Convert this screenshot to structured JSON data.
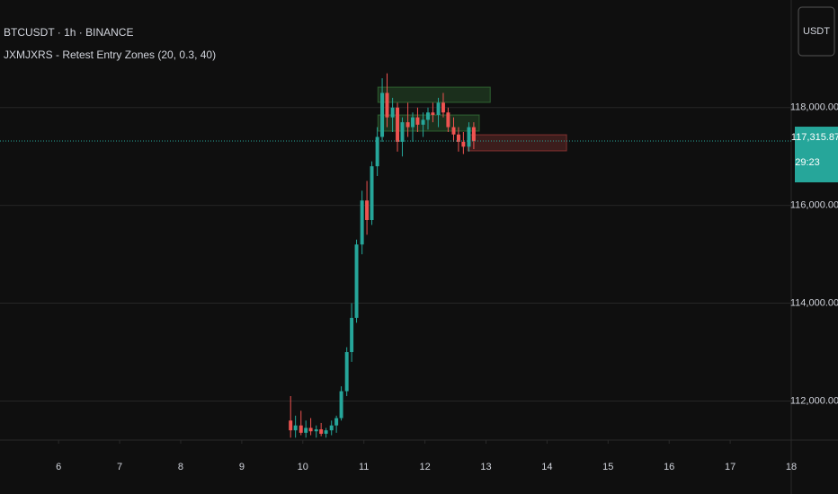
{
  "chart_data": {
    "type": "candlestick",
    "symbol": "BTCUSDT · 1h · BINANCE",
    "indicator": "JXMJXRS - Retest Entry Zones (20, 0.3, 40)",
    "currency": "USDT",
    "up_color": "#26a69a",
    "down_color": "#ef5350",
    "x": [
      9.8,
      9.88,
      9.97,
      10.05,
      10.13,
      10.22,
      10.3,
      10.38,
      10.47,
      10.55,
      10.63,
      10.72,
      10.8,
      10.88,
      10.97,
      11.05,
      11.13,
      11.22,
      11.3,
      11.38,
      11.47,
      11.55,
      11.63,
      11.72,
      11.8,
      11.88,
      11.97,
      12.05,
      12.13,
      12.22,
      12.3,
      12.38,
      12.47,
      12.55,
      12.63,
      12.72,
      12.8
    ],
    "open": [
      111600,
      111400,
      111500,
      111350,
      111450,
      111380,
      111420,
      111330,
      111400,
      111500,
      111650,
      112200,
      113000,
      113700,
      115200,
      116100,
      115700,
      116800,
      117400,
      118300,
      117800,
      118000,
      117300,
      117700,
      117600,
      117800,
      117650,
      117750,
      117900,
      117850,
      118100,
      117900,
      117600,
      117450,
      117300,
      117200,
      117600
    ],
    "high": [
      112100,
      111700,
      111800,
      111600,
      111650,
      111500,
      111550,
      111450,
      111600,
      111700,
      112300,
      113100,
      114000,
      115300,
      116300,
      116500,
      116900,
      117600,
      118600,
      118700,
      118200,
      118100,
      117800,
      118100,
      117900,
      118000,
      117900,
      118000,
      118100,
      118200,
      118300,
      118000,
      117800,
      117600,
      117500,
      117700,
      117700
    ],
    "low": [
      111250,
      111250,
      111300,
      111250,
      111300,
      111250,
      111280,
      111250,
      111300,
      111350,
      111600,
      112100,
      112800,
      113600,
      115000,
      115400,
      115600,
      116600,
      117300,
      117600,
      117500,
      117100,
      117000,
      117400,
      117300,
      117500,
      117400,
      117550,
      117700,
      117600,
      117800,
      117500,
      117300,
      117100,
      117050,
      117100,
      117150
    ],
    "close": [
      111400,
      111500,
      111350,
      111450,
      111380,
      111420,
      111330,
      111400,
      111500,
      111650,
      112200,
      113000,
      113700,
      115200,
      116100,
      115700,
      116800,
      117400,
      118300,
      117800,
      118000,
      117300,
      117700,
      117600,
      117800,
      117650,
      117750,
      117900,
      117850,
      118100,
      117900,
      117600,
      117450,
      117300,
      117200,
      117600,
      117315.87
    ],
    "zones": [
      {
        "x": [
          11.23,
          13.07
        ],
        "y": [
          118106,
          118418
        ],
        "color": "#4caf50"
      },
      {
        "x": [
          11.23,
          12.89
        ],
        "y": [
          117518,
          117849
        ],
        "color": "#4caf50"
      },
      {
        "x": [
          12.7,
          14.32
        ],
        "y": [
          117114,
          117445
        ],
        "color": "#ef5350"
      }
    ],
    "last_price": {
      "value": 117315.87,
      "label": "117,315.87"
    },
    "countdown": "29:23",
    "xlim": [
      5.04,
      18
    ],
    "xticks": [
      6,
      7,
      8,
      9,
      10,
      11,
      12,
      13,
      14,
      15,
      16,
      17,
      18
    ],
    "ylim": [
      111200,
      120200
    ],
    "yticks": [
      {
        "value": 112000,
        "label": "112,000.00"
      },
      {
        "value": 114000,
        "label": "114,000.00"
      },
      {
        "value": 116000,
        "label": "116,000.00"
      },
      {
        "value": 118000,
        "label": "118,000.00"
      }
    ],
    "grid": true
  }
}
